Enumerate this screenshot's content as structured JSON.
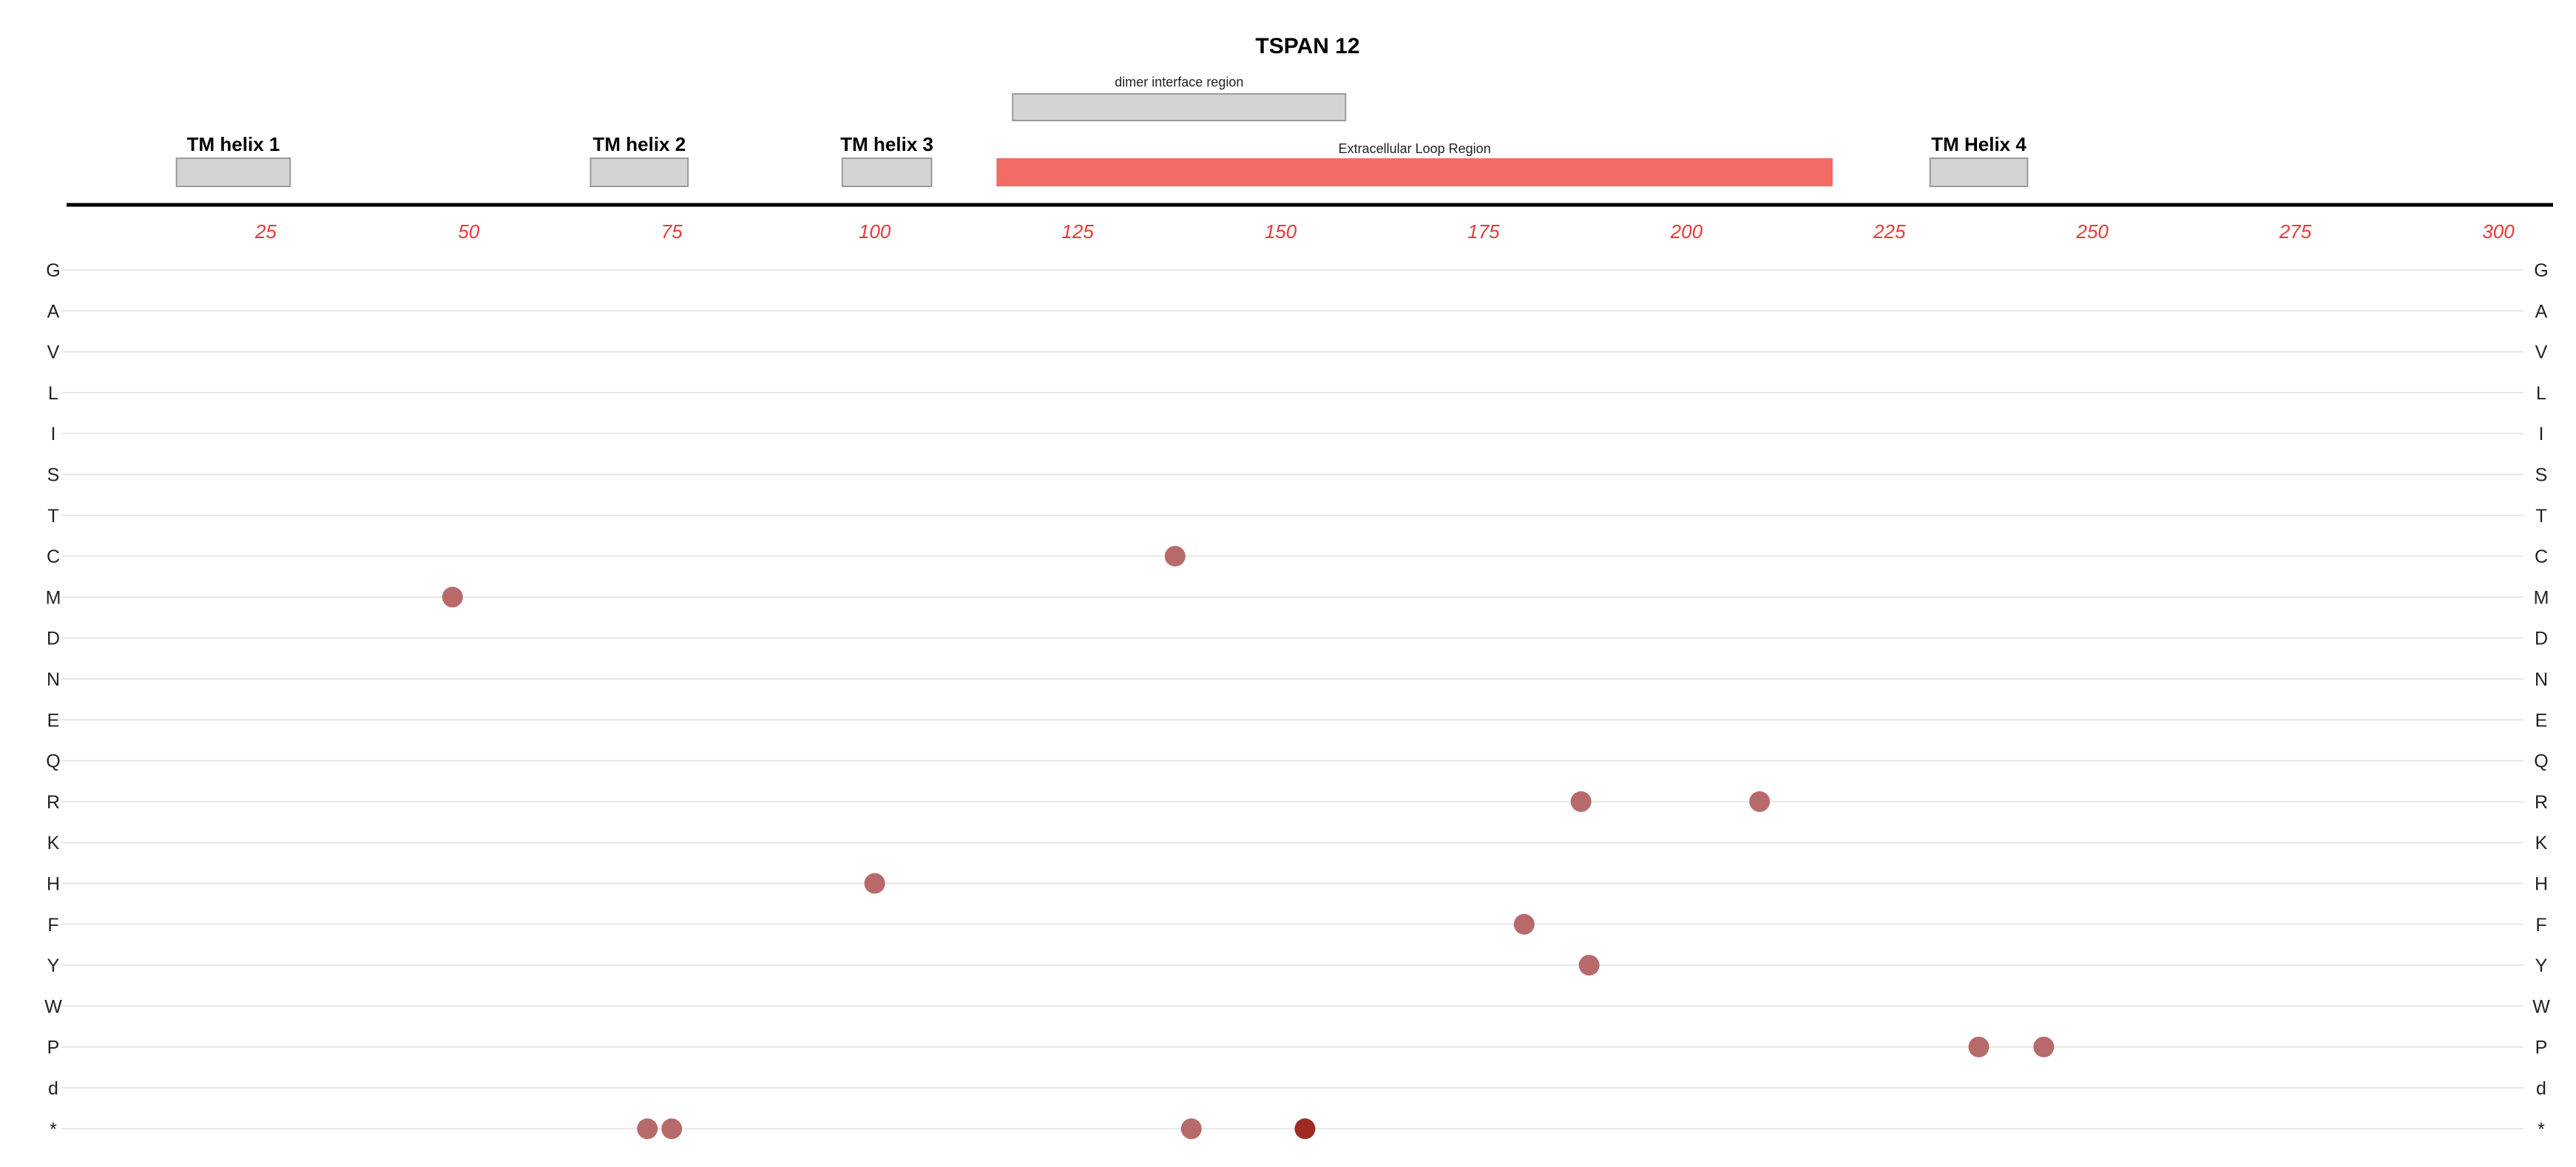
{
  "chart_data": {
    "type": "scatter",
    "title": "TSPAN 12",
    "x_ticks": [
      25,
      50,
      75,
      100,
      125,
      150,
      175,
      200,
      225,
      250,
      275,
      300
    ],
    "xlim": [
      0,
      302
    ],
    "categories": [
      "G",
      "A",
      "V",
      "L",
      "I",
      "S",
      "T",
      "C",
      "M",
      "D",
      "N",
      "E",
      "Q",
      "R",
      "K",
      "H",
      "F",
      "Y",
      "W",
      "P",
      "d",
      "*"
    ],
    "regions": [
      {
        "label": "dimer interface region",
        "start": 117,
        "end": 158,
        "track": "upper",
        "color": "#d4d4d4"
      },
      {
        "label": "TM helix 1",
        "start": 14,
        "end": 28,
        "track": "lower",
        "color": "#d4d4d4"
      },
      {
        "label": "TM helix 2",
        "start": 65,
        "end": 77,
        "track": "lower",
        "color": "#d4d4d4"
      },
      {
        "label": "TM helix 3",
        "start": 96,
        "end": 107,
        "track": "lower",
        "color": "#d4d4d4"
      },
      {
        "label": "Extracellular Loop Region",
        "start": 115,
        "end": 218,
        "track": "lower",
        "color": "#f26b67"
      },
      {
        "label": "TM Helix 4",
        "start": 230,
        "end": 242,
        "track": "lower",
        "color": "#d4d4d4"
      }
    ],
    "points": [
      {
        "x": 137,
        "y": "C",
        "color": "#b86a6a"
      },
      {
        "x": 48,
        "y": "M",
        "color": "#b86a6a"
      },
      {
        "x": 187,
        "y": "R",
        "color": "#b86a6a"
      },
      {
        "x": 209,
        "y": "R",
        "color": "#b86a6a"
      },
      {
        "x": 100,
        "y": "H",
        "color": "#b86a6a"
      },
      {
        "x": 180,
        "y": "F",
        "color": "#b86a6a"
      },
      {
        "x": 188,
        "y": "Y",
        "color": "#b86a6a"
      },
      {
        "x": 236,
        "y": "P",
        "color": "#b86a6a"
      },
      {
        "x": 244,
        "y": "P",
        "color": "#b86a6a"
      },
      {
        "x": 72,
        "y": "*",
        "color": "#b86a6a"
      },
      {
        "x": 75,
        "y": "*",
        "color": "#b86a6a"
      },
      {
        "x": 139,
        "y": "*",
        "color": "#b86a6a"
      },
      {
        "x": 153,
        "y": "*",
        "color": "#9e2a22"
      }
    ]
  }
}
